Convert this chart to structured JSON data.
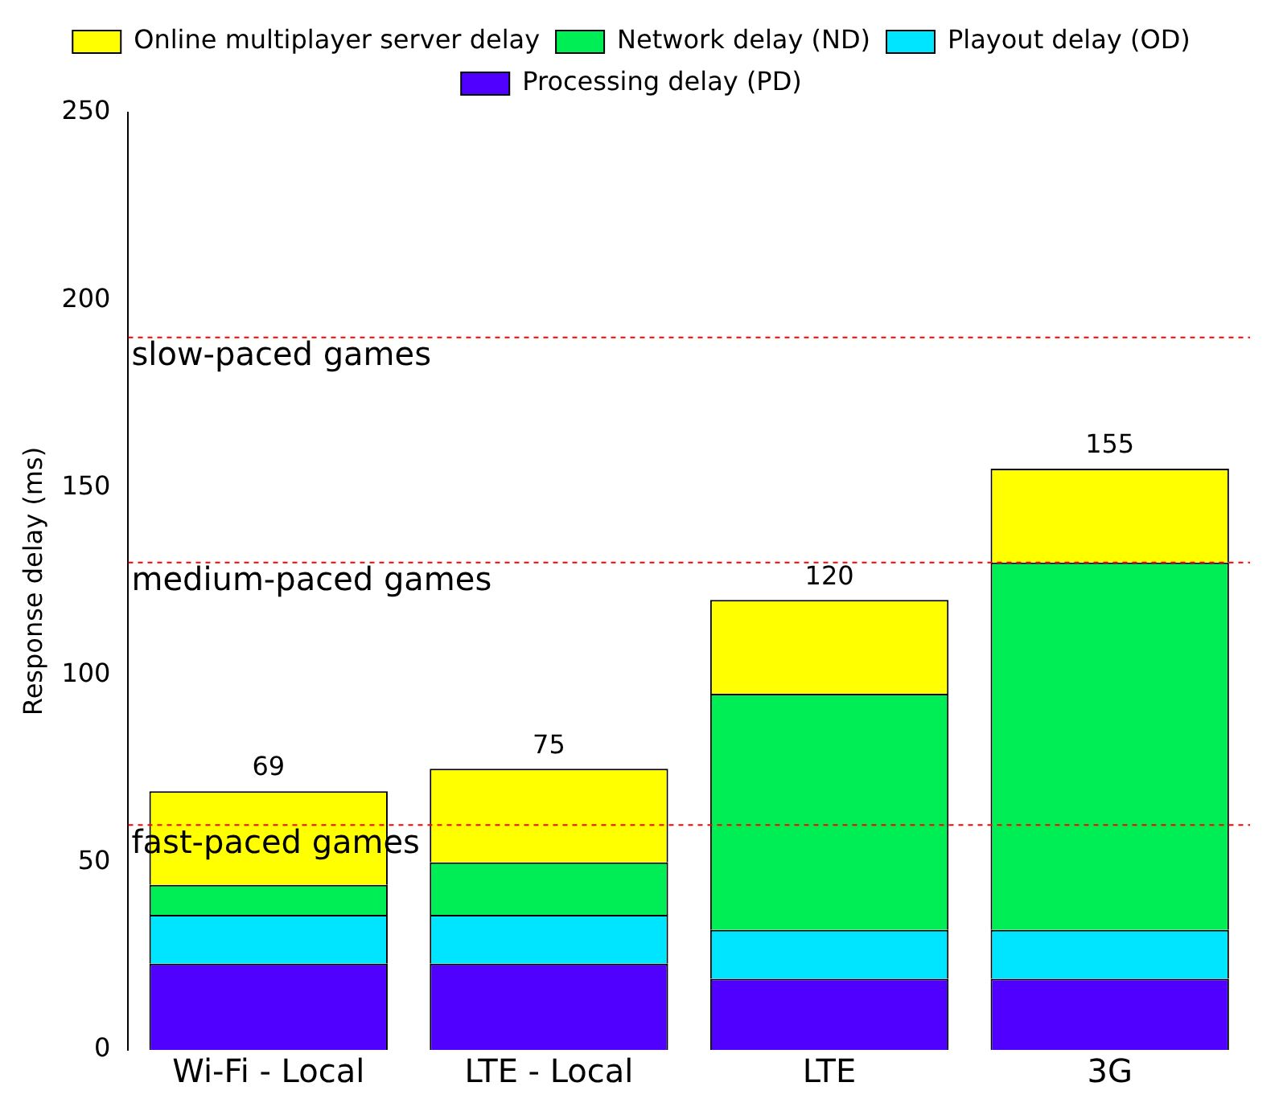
{
  "chart_data": {
    "type": "bar",
    "ylabel": "Response delay (ms)",
    "stacked": true,
    "legend": "top",
    "grid": false,
    "categories": [
      "Wi-Fi - Local",
      "LTE - Local",
      "LTE",
      "3G"
    ],
    "series": [
      {
        "name": "Processing delay (PD)",
        "color": "#5000ff",
        "values": [
          23,
          23,
          19,
          19
        ]
      },
      {
        "name": "Playout delay (OD)",
        "color": "#00e5ff",
        "values": [
          13,
          13,
          13,
          13
        ]
      },
      {
        "name": "Network delay (ND)",
        "color": "#00ee55",
        "values": [
          8,
          14,
          63,
          98
        ]
      },
      {
        "name": "Online multiplayer server delay",
        "color": "#ffff00",
        "values": [
          25,
          25,
          25,
          25
        ]
      }
    ],
    "totals": [
      "69",
      "75",
      "120",
      "155"
    ],
    "ylim": [
      0,
      250
    ],
    "yticks": [
      0,
      50,
      100,
      150,
      200,
      250
    ],
    "ref_lines": [
      {
        "axis": "y",
        "value": 190,
        "label": "slow-paced games",
        "color": "#ff0000",
        "line_style": "dotted"
      },
      {
        "axis": "y",
        "value": 130,
        "label": "medium-paced games",
        "color": "#ff0000",
        "line_style": "dotted"
      },
      {
        "axis": "y",
        "value": 60,
        "label": "fast-paced games",
        "color": "#ff0000",
        "line_style": "dotted"
      }
    ]
  }
}
